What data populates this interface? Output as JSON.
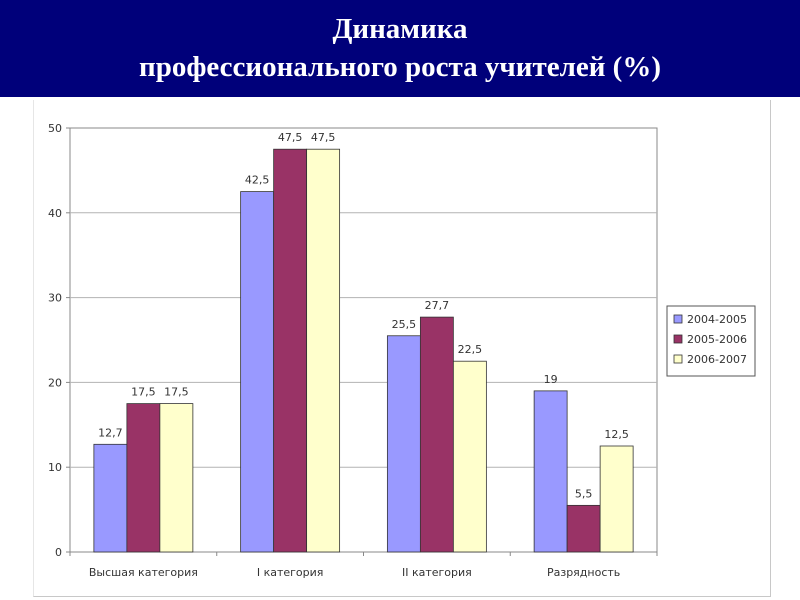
{
  "header": {
    "title_line1": "Динамика",
    "title_line2": "профессионального роста учителей (%)"
  },
  "colors": {
    "header_bg": "#00007a",
    "series": [
      "#9999ff",
      "#993366",
      "#ffffcc"
    ]
  },
  "chart_data": {
    "type": "bar",
    "title": "Динамика профессионального роста учителей (%)",
    "categories": [
      "Высшая категория",
      "I категория",
      "II категория",
      "Разрядность"
    ],
    "series": [
      {
        "name": "2004-2005",
        "values": [
          12.7,
          42.5,
          25.5,
          19
        ]
      },
      {
        "name": "2005-2006",
        "values": [
          17.5,
          47.5,
          27.7,
          5.5
        ]
      },
      {
        "name": "2006-2007",
        "values": [
          17.5,
          47.5,
          22.5,
          12.5
        ]
      }
    ],
    "value_labels": [
      [
        "12,7",
        "42,5",
        "25,5",
        "19"
      ],
      [
        "17,5",
        "47,5",
        "27,7",
        "5,5"
      ],
      [
        "17,5",
        "47,5",
        "22,5",
        "12,5"
      ]
    ],
    "y_ticks": [
      "0",
      "10",
      "20",
      "30",
      "40",
      "50"
    ],
    "ylim": [
      0,
      50
    ],
    "xlabel": "",
    "ylabel": "",
    "grid": true,
    "legend_position": "right"
  }
}
